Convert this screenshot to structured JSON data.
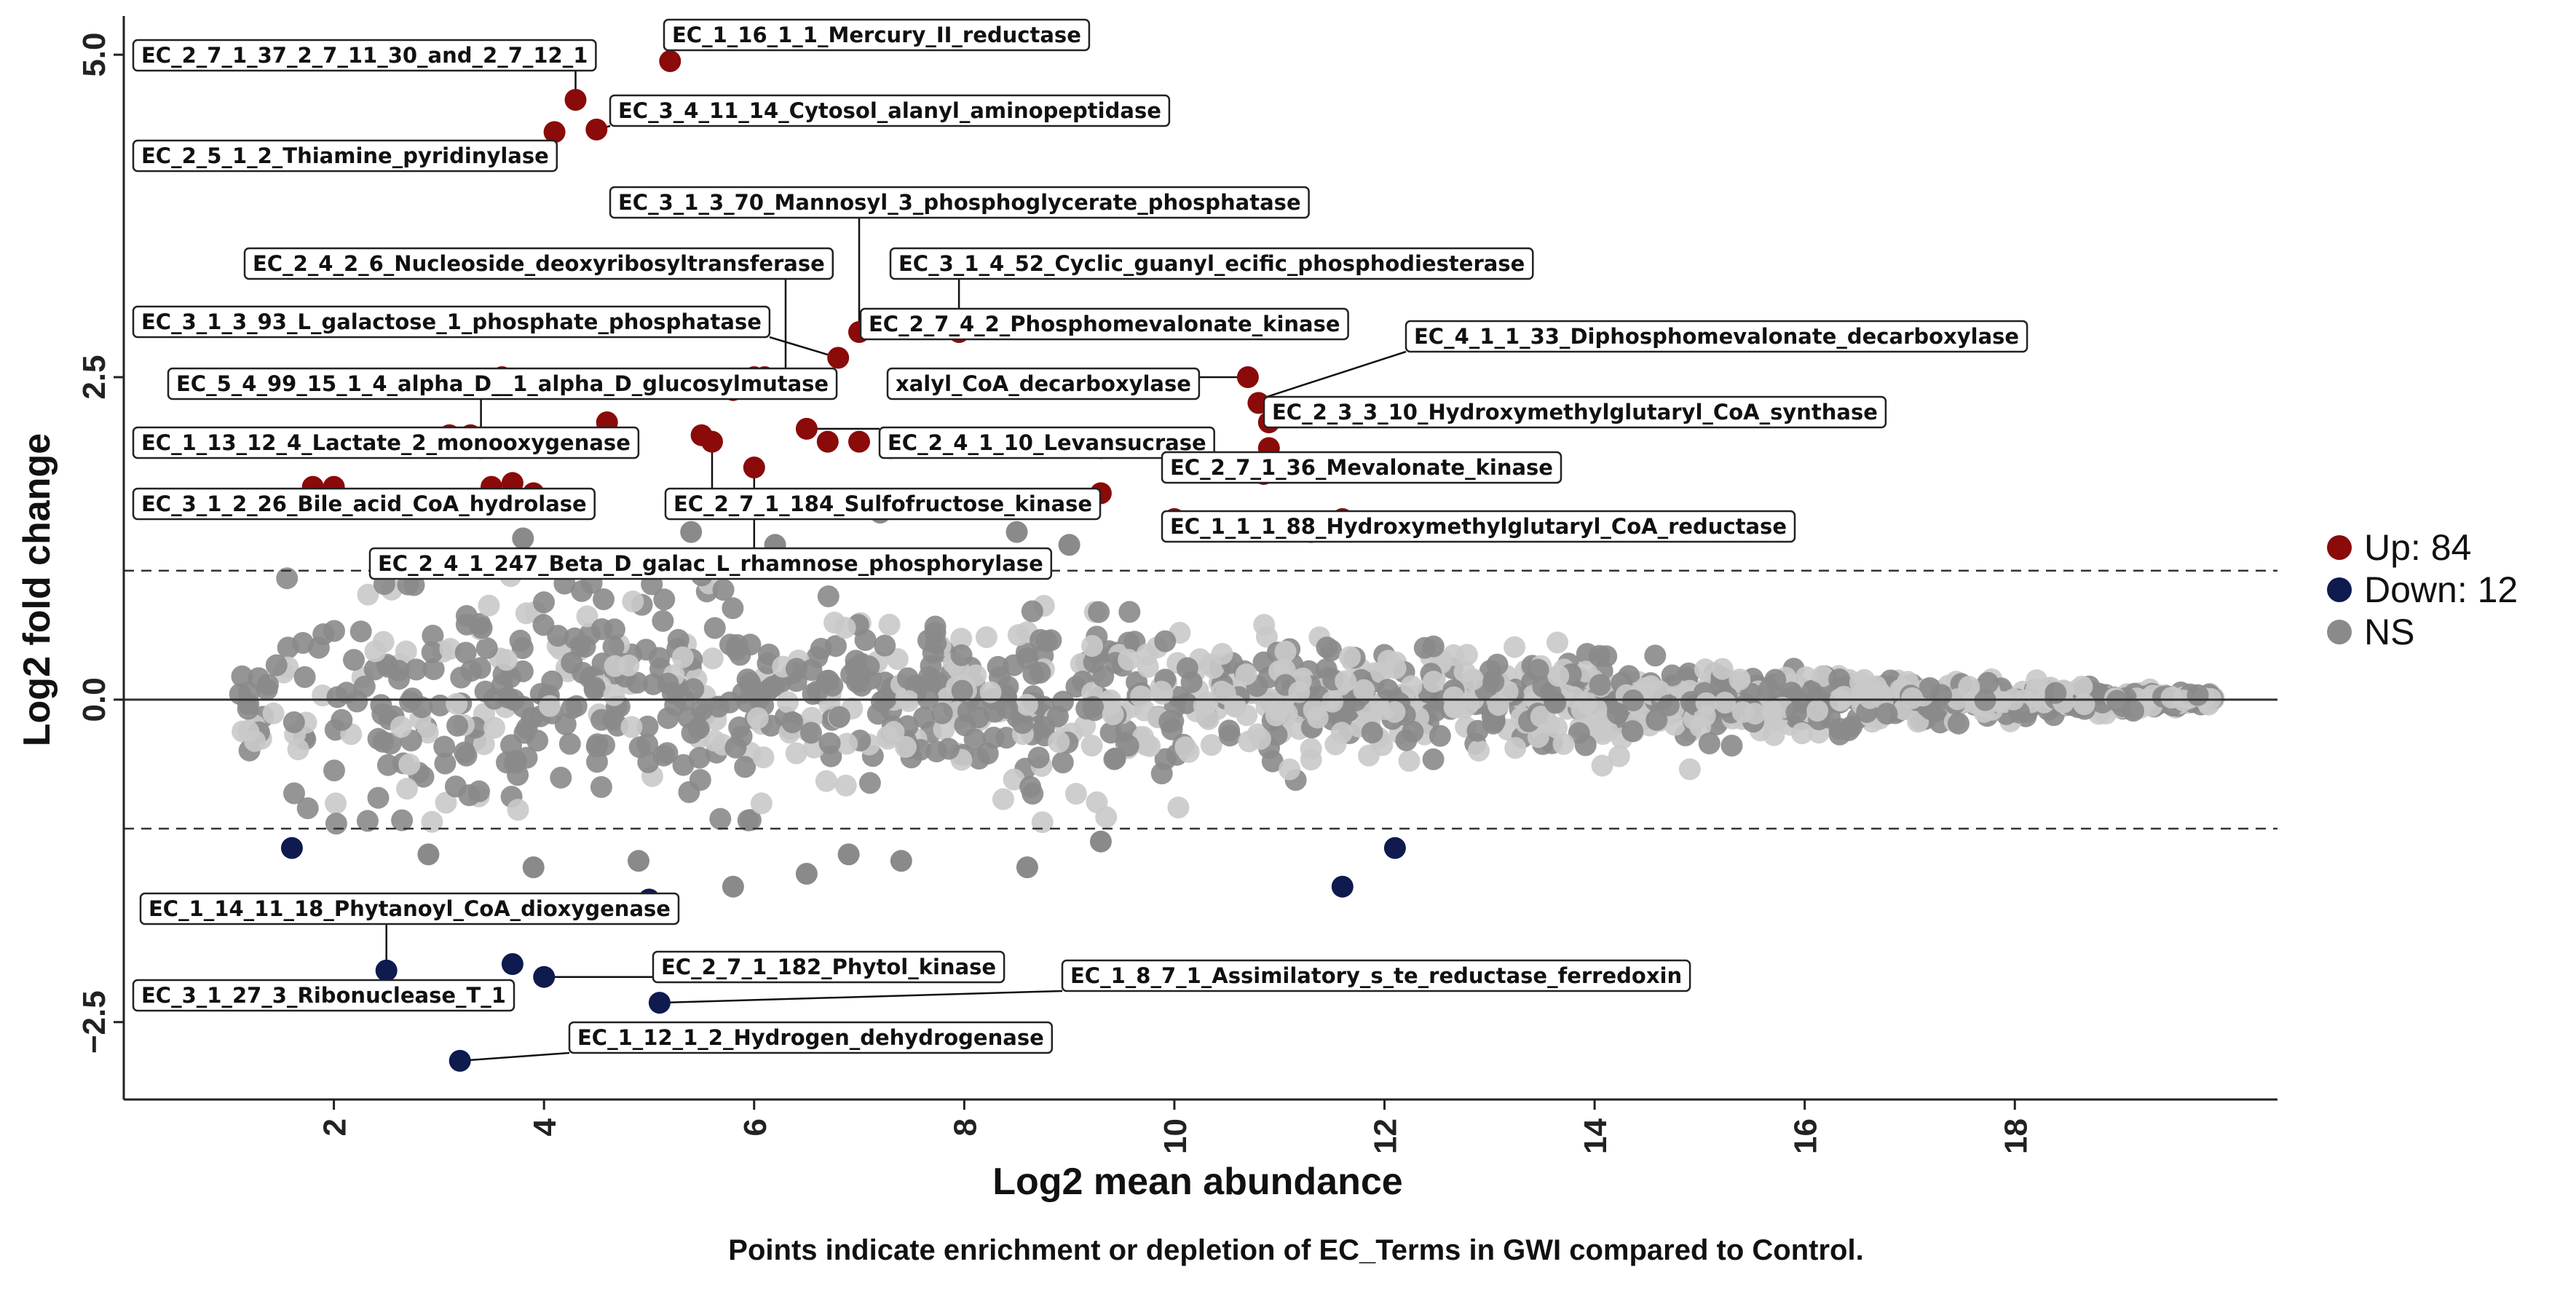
{
  "chart_data": {
    "type": "scatter",
    "title": "",
    "xlabel": "Log2 mean abundance",
    "ylabel": "Log2 fold change",
    "caption": "Points indicate enrichment or depletion of EC_Terms in GWI compared to Control.",
    "xlim": [
      0.0,
      20.5
    ],
    "ylim": [
      -3.1,
      5.3
    ],
    "xticks": [
      2,
      4,
      6,
      8,
      10,
      12,
      14,
      16,
      18
    ],
    "xtick_labels": [
      "2",
      "4",
      "6",
      "8",
      "10",
      "12",
      "14",
      "16",
      "18"
    ],
    "yticks": [
      -2.5,
      0.0,
      2.5,
      5.0
    ],
    "ytick_labels": [
      "−2.5",
      "0.0",
      "2.5",
      "5.0"
    ],
    "hlines": [
      {
        "y": 1.0,
        "style": "dashed"
      },
      {
        "y": -1.0,
        "style": "dashed"
      },
      {
        "y": 0.0,
        "style": "solid"
      }
    ],
    "colors": {
      "up": "#8b0a0a",
      "down": "#0f1a4f",
      "ns": "#8a8a8a",
      "ns_light": "#c9c9c9",
      "axis": "#222222",
      "label_border": "#222222"
    },
    "legend": [
      {
        "name": "Up: 84",
        "color": "#8b0a0a"
      },
      {
        "name": "Down: 12",
        "color": "#0f1a4f"
      },
      {
        "name": "NS",
        "color": "#8a8a8a"
      }
    ],
    "legend_position": "right",
    "series": [
      {
        "name": "Up",
        "points": [
          [
            5.2,
            4.95
          ],
          [
            4.3,
            4.65
          ],
          [
            4.1,
            4.4
          ],
          [
            4.5,
            4.42
          ],
          [
            7.0,
            2.85
          ],
          [
            7.95,
            2.85
          ],
          [
            6.8,
            2.65
          ],
          [
            6.3,
            2.45
          ],
          [
            5.8,
            2.4
          ],
          [
            6.0,
            2.5
          ],
          [
            6.1,
            2.5
          ],
          [
            3.6,
            2.5
          ],
          [
            5.3,
            2.45
          ],
          [
            10.7,
            2.5
          ],
          [
            10.8,
            2.3
          ],
          [
            10.9,
            2.15
          ],
          [
            10.9,
            1.95
          ],
          [
            10.85,
            1.75
          ],
          [
            10.0,
            2.0
          ],
          [
            9.3,
            1.95
          ],
          [
            6.5,
            2.1
          ],
          [
            5.5,
            2.05
          ],
          [
            4.6,
            2.15
          ],
          [
            4.3,
            2.0
          ],
          [
            3.3,
            2.05
          ],
          [
            3.1,
            2.05
          ],
          [
            3.4,
            1.95
          ],
          [
            2.6,
            2.0
          ],
          [
            2.1,
            2.0
          ],
          [
            7.0,
            2.0
          ],
          [
            7.3,
            1.95
          ],
          [
            6.7,
            2.0
          ],
          [
            6.0,
            1.8
          ],
          [
            5.6,
            2.0
          ],
          [
            1.8,
            1.65
          ],
          [
            2.0,
            1.65
          ],
          [
            3.5,
            1.65
          ],
          [
            3.7,
            1.68
          ],
          [
            3.9,
            1.6
          ],
          [
            9.3,
            1.6
          ],
          [
            10.0,
            1.4
          ],
          [
            11.6,
            1.4
          ],
          [
            11.5,
            1.35
          ],
          [
            11.3,
            1.3
          ]
        ]
      },
      {
        "name": "Down",
        "points": [
          [
            1.6,
            -1.15
          ],
          [
            2.1,
            -1.65
          ],
          [
            5.0,
            -1.55
          ],
          [
            11.6,
            -1.45
          ],
          [
            12.1,
            -1.15
          ],
          [
            2.5,
            -2.1
          ],
          [
            2.6,
            -2.3
          ],
          [
            3.7,
            -2.05
          ],
          [
            4.0,
            -2.15
          ],
          [
            5.1,
            -2.35
          ],
          [
            3.2,
            -2.8
          ]
        ]
      }
    ],
    "labels": [
      {
        "text": "EC_1_16_1_1_Mercury_II_reductase",
        "point": [
          5.2,
          4.95
        ]
      },
      {
        "text": "EC_2_7_1_37_2_7_11_30_and_2_7_12_1",
        "point": [
          4.3,
          4.65
        ]
      },
      {
        "text": "EC_3_4_11_14_Cytosol_alanyl_aminopeptidase",
        "point": [
          4.5,
          4.42
        ]
      },
      {
        "text": "EC_2_5_1_2_Thiamine_pyridinylase",
        "point": [
          4.1,
          4.4
        ]
      },
      {
        "text": "EC_3_1_3_70_Mannosyl_3_phosphoglycerate_phosphatase",
        "point": [
          7.0,
          2.85
        ]
      },
      {
        "text": "EC_2_4_2_6_Nucleoside_deoxyribosyltransferase",
        "point": [
          6.3,
          2.45
        ]
      },
      {
        "text": "EC_3_1_4_52_Cyclic_guanyl_ecific_phosphodiesterase",
        "point": [
          7.95,
          2.85
        ]
      },
      {
        "text": "EC_3_1_3_93_L_galactose_1_phosphate_phosphatase",
        "point": [
          6.8,
          2.65
        ]
      },
      {
        "text": "EC_2_7_4_2_Phosphomevalonate_kinase",
        "point": [
          7.95,
          2.85
        ]
      },
      {
        "text": "EC_4_1_1_33_Diphosphomevalonate_decarboxylase",
        "point": [
          10.7,
          2.3
        ]
      },
      {
        "text": "EC_5_4_99_15_1_4_alpha_D__1_alpha_D_glucosylmutase",
        "point": [
          3.4,
          1.95
        ]
      },
      {
        "text": "xalyl_CoA_decarboxylase",
        "point": [
          10.7,
          2.5
        ]
      },
      {
        "text": "EC_2_3_3_10_Hydroxymethylglutaryl_CoA_synthase",
        "point": [
          10.9,
          2.15
        ]
      },
      {
        "text": "EC_1_13_12_4_Lactate_2_monooxygenase",
        "point": [
          4.6,
          2.15
        ]
      },
      {
        "text": "EC_2_4_1_10_Levansucrase",
        "point": [
          6.5,
          2.1
        ]
      },
      {
        "text": "EC_2_7_1_36_Mevalonate_kinase",
        "point": [
          10.85,
          1.75
        ]
      },
      {
        "text": "EC_3_1_2_26_Bile_acid_CoA_hydrolase",
        "point": [
          3.5,
          1.65
        ]
      },
      {
        "text": "EC_2_7_1_184_Sulfofructose_kinase",
        "point": [
          5.6,
          2.0
        ]
      },
      {
        "text": "EC_1_1_1_88_Hydroxymethylglutaryl_CoA_reductase",
        "point": [
          11.6,
          1.4
        ]
      },
      {
        "text": "EC_2_4_1_247_Beta_D_galac_L_rhamnose_phosphorylase",
        "point": [
          6.0,
          1.8
        ]
      },
      {
        "text": "EC_1_14_11_18_Phytanoyl_CoA_dioxygenase",
        "point": [
          2.5,
          -2.1
        ]
      },
      {
        "text": "EC_2_7_1_182_Phytol_kinase",
        "point": [
          4.0,
          -2.15
        ]
      },
      {
        "text": "EC_1_8_7_1_Assimilatory_s_te_reductase_ferredoxin",
        "point": [
          5.1,
          -2.35
        ]
      },
      {
        "text": "EC_3_1_27_3_Ribonuclease_T_1",
        "point": [
          2.6,
          -2.3
        ]
      },
      {
        "text": "EC_1_12_1_2_Hydrogen_dehydrogenase",
        "point": [
          3.2,
          -2.8
        ]
      }
    ]
  }
}
